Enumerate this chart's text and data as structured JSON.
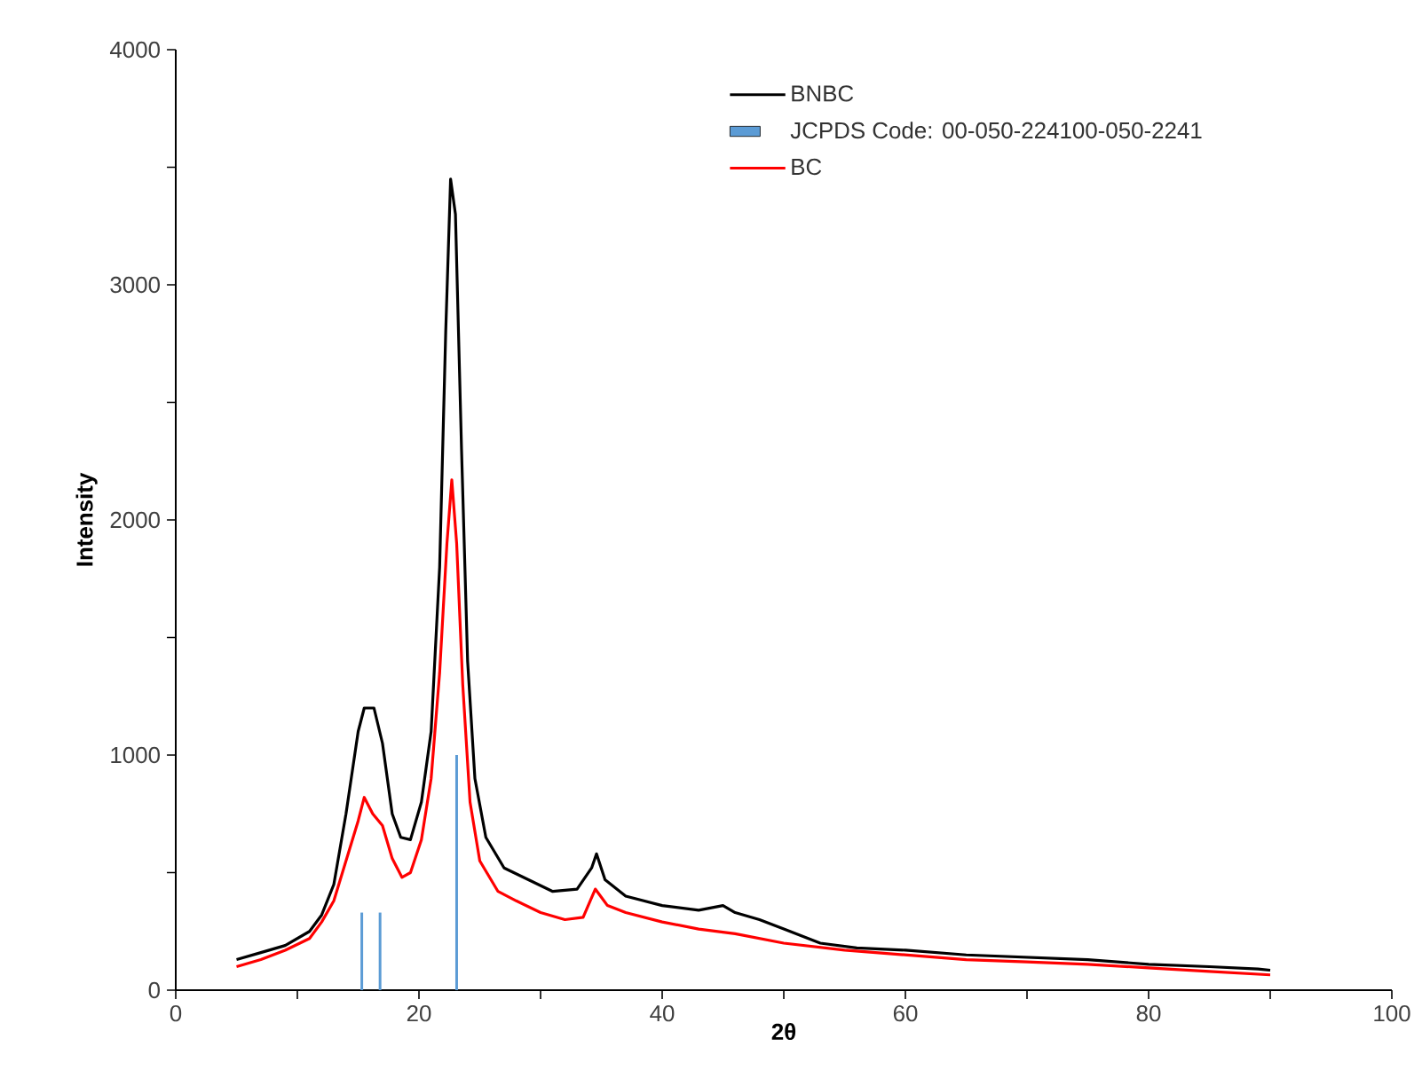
{
  "chart_data": {
    "type": "line",
    "xlabel": "2θ",
    "ylabel": "Intensity",
    "xlim": [
      0,
      100
    ],
    "ylim": [
      0,
      4000
    ],
    "xticks": [
      0,
      {
        "value": 10,
        "label": null
      },
      20,
      {
        "value": 30,
        "label": null
      },
      40,
      {
        "value": 50,
        "label": null
      },
      60,
      {
        "value": 70,
        "label": null
      },
      80,
      {
        "value": 90,
        "label": null
      },
      100
    ],
    "yticks": [
      0,
      {
        "value": 500,
        "label": null
      },
      1000,
      {
        "value": 1500,
        "label": null
      },
      2000,
      {
        "value": 2500,
        "label": null
      },
      3000,
      {
        "value": 3500,
        "label": null
      },
      4000
    ],
    "grid": false,
    "legend": "top right",
    "marker": "none",
    "line_style": "solid",
    "series": [
      {
        "name": "BNBC",
        "color": "#000000",
        "x": [
          5,
          7,
          9,
          11,
          12,
          13,
          14,
          15,
          15.5,
          16.3,
          17,
          17.8,
          18.5,
          19.3,
          20.2,
          21,
          21.7,
          22.2,
          22.6,
          23,
          23.5,
          24,
          24.6,
          25.5,
          27,
          29,
          31,
          33,
          34.2,
          34.6,
          35.3,
          37,
          40,
          43,
          45,
          46,
          48,
          50,
          53,
          56,
          60,
          65,
          70,
          75,
          80,
          85,
          89,
          90
        ],
        "values": [
          130,
          160,
          190,
          250,
          320,
          450,
          750,
          1100,
          1200,
          1200,
          1050,
          750,
          650,
          640,
          800,
          1100,
          1800,
          2800,
          3450,
          3300,
          2300,
          1400,
          900,
          650,
          520,
          470,
          420,
          430,
          520,
          580,
          470,
          400,
          360,
          340,
          360,
          330,
          300,
          260,
          200,
          180,
          170,
          150,
          140,
          130,
          110,
          100,
          90,
          85
        ]
      },
      {
        "name": "JCPDS Code: 00-050-224100-050-2241",
        "type": "bar",
        "color": "#5b9bd5",
        "x": [
          15.3,
          16.8,
          23.1
        ],
        "values": [
          330,
          330,
          1000
        ]
      },
      {
        "name": "BC",
        "color": "#ff0000",
        "x": [
          5,
          7,
          9,
          11,
          12,
          13,
          14,
          15,
          15.5,
          16.2,
          17,
          17.8,
          18.6,
          19.3,
          20.2,
          21,
          21.7,
          22.3,
          22.7,
          23.1,
          23.6,
          24.2,
          25,
          26.5,
          28,
          30,
          32,
          33.5,
          34.5,
          35.5,
          37,
          40,
          43,
          46,
          50,
          55,
          60,
          65,
          70,
          75,
          80,
          85,
          90
        ],
        "values": [
          100,
          130,
          170,
          220,
          290,
          380,
          550,
          720,
          820,
          750,
          700,
          560,
          480,
          500,
          640,
          900,
          1350,
          1900,
          2170,
          1900,
          1300,
          800,
          550,
          420,
          380,
          330,
          300,
          310,
          430,
          360,
          330,
          290,
          260,
          240,
          200,
          170,
          150,
          130,
          120,
          110,
          95,
          80,
          65
        ]
      }
    ]
  }
}
